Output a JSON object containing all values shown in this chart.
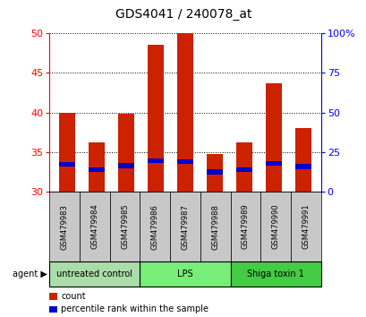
{
  "title": "GDS4041 / 240078_at",
  "samples": [
    "GSM479983",
    "GSM479984",
    "GSM479985",
    "GSM479986",
    "GSM479987",
    "GSM479988",
    "GSM479989",
    "GSM479990",
    "GSM479991"
  ],
  "counts": [
    40.0,
    36.2,
    39.8,
    48.5,
    50.0,
    34.8,
    36.2,
    43.7,
    38.0
  ],
  "percentile_values": [
    33.5,
    32.8,
    33.3,
    33.9,
    33.8,
    32.5,
    32.8,
    33.6,
    33.2
  ],
  "bar_bottom": 30.0,
  "ylim": [
    30,
    50
  ],
  "yticks": [
    30,
    35,
    40,
    45,
    50
  ],
  "right_yticks": [
    0,
    25,
    50,
    75,
    100
  ],
  "right_ylim": [
    0,
    100
  ],
  "count_color": "#CC2200",
  "percentile_color": "#0000CC",
  "bar_width": 0.55,
  "groups": [
    {
      "label": "untreated control",
      "start": 0,
      "end": 3,
      "color": "#AADDAA"
    },
    {
      "label": "LPS",
      "start": 3,
      "end": 6,
      "color": "#77EE77"
    },
    {
      "label": "Shiga toxin 1",
      "start": 6,
      "end": 9,
      "color": "#44CC44"
    }
  ],
  "agent_label": "agent",
  "legend_count": "count",
  "legend_percentile": "percentile rank within the sample",
  "plot_bg": "#FFFFFF",
  "sample_box_bg": "#C8C8C8",
  "grid_linestyle": "dotted",
  "pct_bar_height": 0.6
}
